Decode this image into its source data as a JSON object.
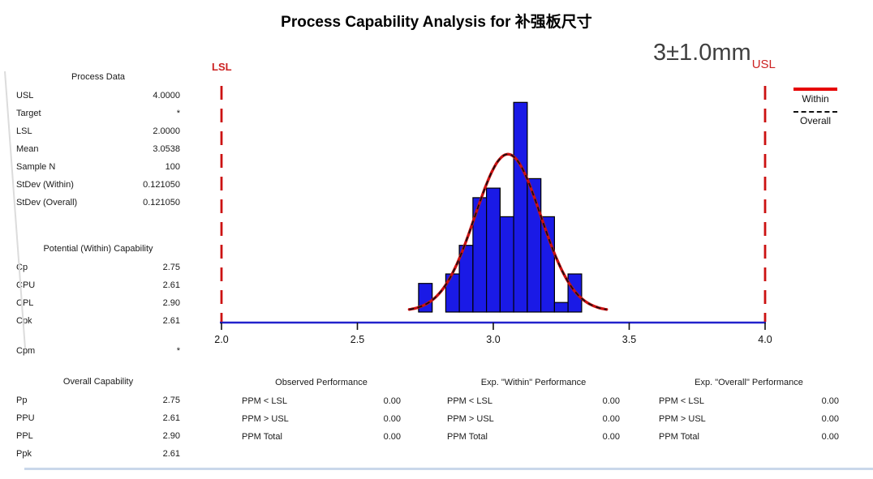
{
  "title": "Process Capability Analysis for 补强板尺寸",
  "spec_annotation": {
    "text": "3±1.0mm",
    "subscript": "USL"
  },
  "legend": {
    "within_label": "Within",
    "overall_label": "Overall"
  },
  "process_data": {
    "header": "Process Data",
    "rows": [
      {
        "label": "USL",
        "value": "4.0000"
      },
      {
        "label": "Target",
        "value": "*"
      },
      {
        "label": "LSL",
        "value": "2.0000"
      },
      {
        "label": "Mean",
        "value": "3.0538"
      },
      {
        "label": "Sample N",
        "value": "100"
      },
      {
        "label": "StDev (Within)",
        "value": "0.121050"
      },
      {
        "label": "StDev (Overall)",
        "value": "0.121050"
      }
    ]
  },
  "within_capability": {
    "header": "Potential (Within) Capability",
    "rows": [
      {
        "label": "Cp",
        "value": "2.75"
      },
      {
        "label": "CPU",
        "value": "2.61"
      },
      {
        "label": "CPL",
        "value": "2.90"
      },
      {
        "label": "Cpk",
        "value": "2.61"
      },
      {
        "label": "Cpm",
        "value": "*"
      }
    ]
  },
  "overall_capability": {
    "header": "Overall Capability",
    "rows": [
      {
        "label": "Pp",
        "value": "2.75"
      },
      {
        "label": "PPU",
        "value": "2.61"
      },
      {
        "label": "PPL",
        "value": "2.90"
      },
      {
        "label": "Ppk",
        "value": "2.61"
      }
    ]
  },
  "performance_tables": [
    {
      "header": "Observed Performance",
      "rows": [
        {
          "label": "PPM < LSL",
          "value": "0.00"
        },
        {
          "label": "PPM > USL",
          "value": "0.00"
        },
        {
          "label": "PPM Total",
          "value": "0.00"
        }
      ]
    },
    {
      "header": "Exp. \"Within\" Performance",
      "rows": [
        {
          "label": "PPM < LSL",
          "value": "0.00"
        },
        {
          "label": "PPM > USL",
          "value": "0.00"
        },
        {
          "label": "PPM Total",
          "value": "0.00"
        }
      ]
    },
    {
      "header": "Exp. \"Overall\" Performance",
      "rows": [
        {
          "label": "PPM < LSL",
          "value": "0.00"
        },
        {
          "label": "PPM > USL",
          "value": "0.00"
        },
        {
          "label": "PPM Total",
          "value": "0.00"
        }
      ]
    }
  ],
  "chart_data": {
    "type": "bar",
    "subtype": "capability-histogram-with-normal-curves",
    "title": "Process Capability Analysis for 补强板尺寸",
    "x_range": [
      2.0,
      4.0
    ],
    "x_ticks": [
      "2.0",
      "2.5",
      "3.0",
      "3.5",
      "4.0"
    ],
    "bin_width": 0.05,
    "bin_centers": [
      2.75,
      2.8,
      2.85,
      2.9,
      2.95,
      3.0,
      3.05,
      3.1,
      3.15,
      3.2,
      3.25,
      3.3
    ],
    "counts": [
      3,
      0,
      4,
      7,
      12,
      13,
      10,
      22,
      14,
      10,
      1,
      4
    ],
    "lsl": 2.0,
    "usl": 4.0,
    "lsl_label": "LSL",
    "usl_label": "USL",
    "mean": 3.0538,
    "stdev_within": 0.12105,
    "stdev_overall": 0.12105,
    "sample_n": 100,
    "series": [
      {
        "name": "Within",
        "style": "solid",
        "color": "#cc1111"
      },
      {
        "name": "Overall",
        "style": "dashed",
        "color": "#111111"
      }
    ],
    "bar_color": "#1a1ae6",
    "bar_stroke_color": "#000000",
    "curve_color": "#cc1111",
    "overall_curve_color": "#111111",
    "spec_line_color": "#cc1111",
    "axis_color": "#2222cc",
    "legend_position": "top-right",
    "grid": false
  }
}
